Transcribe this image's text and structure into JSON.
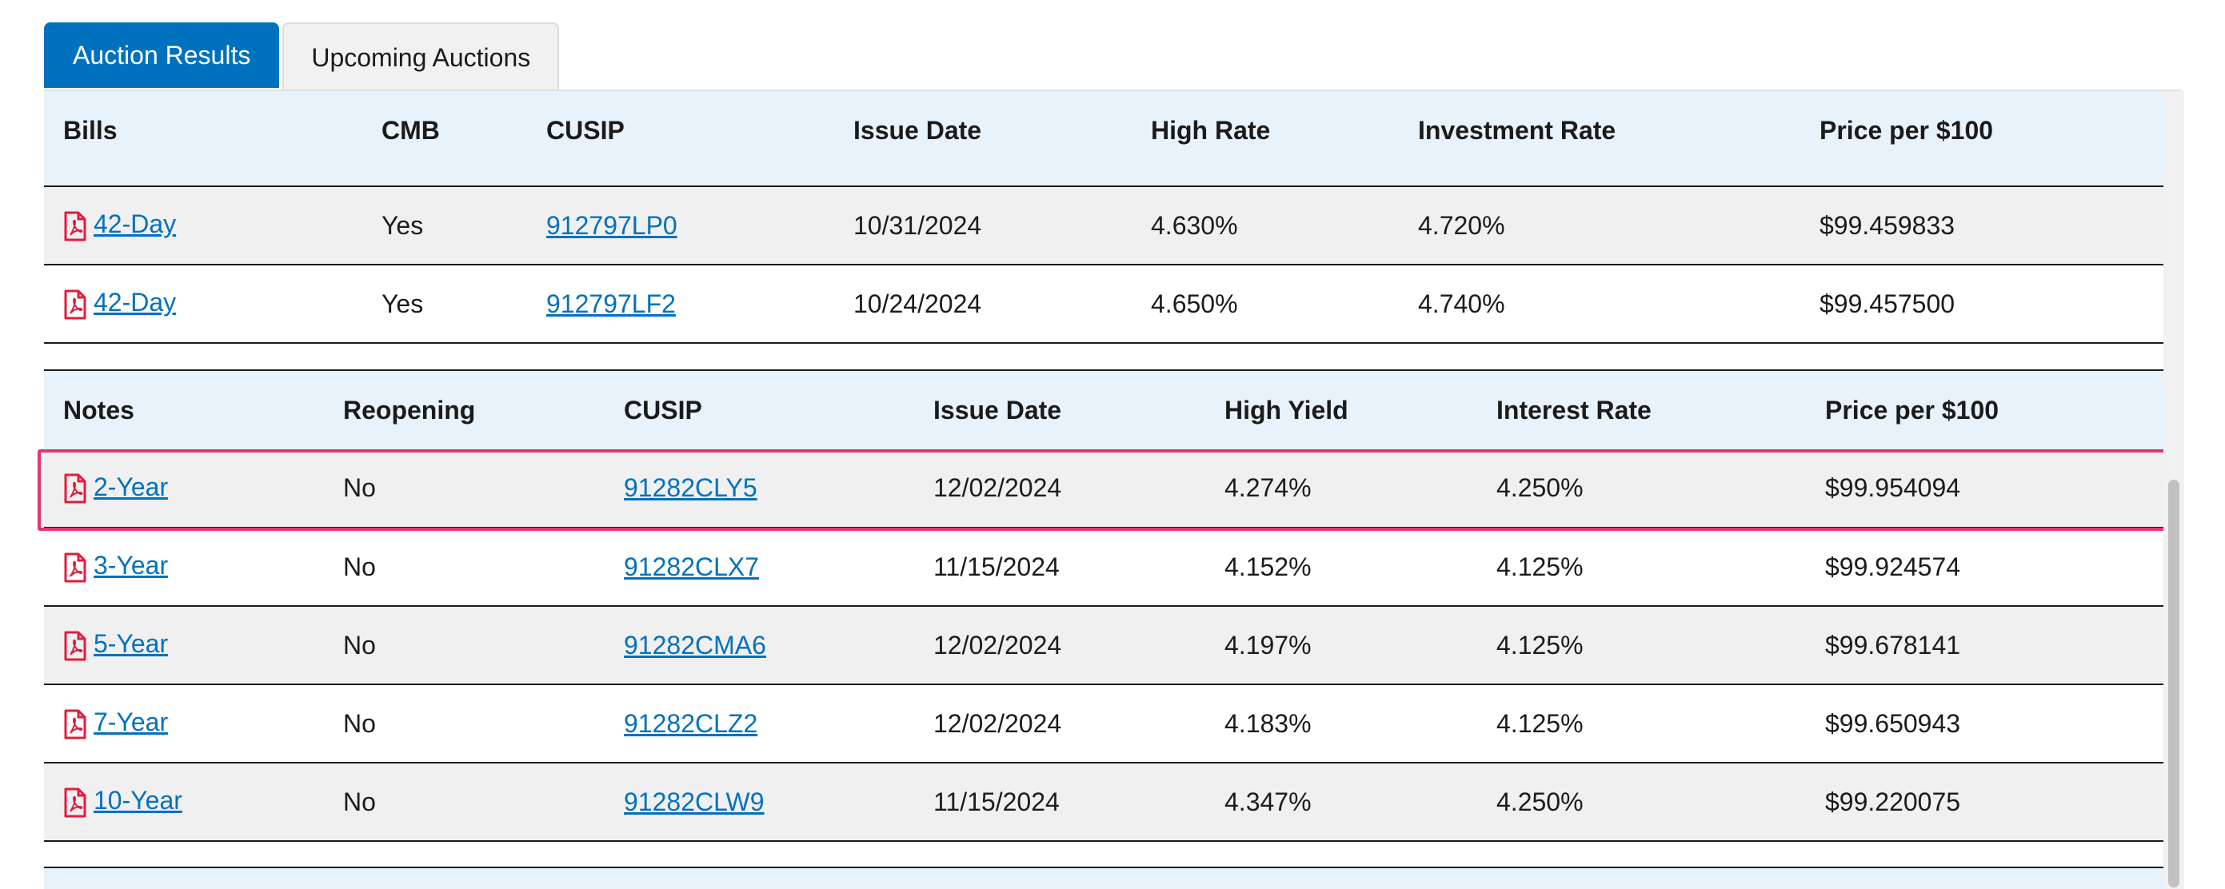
{
  "tabs": [
    {
      "label": "Auction Results",
      "active": true
    },
    {
      "label": "Upcoming Auctions",
      "active": false
    }
  ],
  "colors": {
    "accent": "#0071bc",
    "header_bg": "#e7f2fa",
    "row_alt": "#f0f0f0",
    "highlight": "#e8336d",
    "pdf_icon": "#e31c3d"
  },
  "icons": {
    "pdf": "file-pdf-icon"
  },
  "bills": {
    "headers": [
      "Bills",
      "CMB",
      "CUSIP",
      "Issue Date",
      "High Rate",
      "Investment Rate",
      "Price per $100"
    ],
    "rows": [
      {
        "term": "42-Day",
        "flag": "Yes",
        "cusip": "912797LP0",
        "issue_date": "10/31/2024",
        "rate": "4.630%",
        "rate2": "4.720%",
        "price": "$99.459833"
      },
      {
        "term": "42-Day",
        "flag": "Yes",
        "cusip": "912797LF2",
        "issue_date": "10/24/2024",
        "rate": "4.650%",
        "rate2": "4.740%",
        "price": "$99.457500"
      }
    ]
  },
  "notes": {
    "headers": [
      "Notes",
      "Reopening",
      "CUSIP",
      "Issue Date",
      "High Yield",
      "Interest Rate",
      "Price per $100"
    ],
    "rows": [
      {
        "term": "2-Year",
        "flag": "No",
        "cusip": "91282CLY5",
        "issue_date": "12/02/2024",
        "rate": "4.274%",
        "rate2": "4.250%",
        "price": "$99.954094",
        "highlighted": true
      },
      {
        "term": "3-Year",
        "flag": "No",
        "cusip": "91282CLX7",
        "issue_date": "11/15/2024",
        "rate": "4.152%",
        "rate2": "4.125%",
        "price": "$99.924574"
      },
      {
        "term": "5-Year",
        "flag": "No",
        "cusip": "91282CMA6",
        "issue_date": "12/02/2024",
        "rate": "4.197%",
        "rate2": "4.125%",
        "price": "$99.678141"
      },
      {
        "term": "7-Year",
        "flag": "No",
        "cusip": "91282CLZ2",
        "issue_date": "12/02/2024",
        "rate": "4.183%",
        "rate2": "4.125%",
        "price": "$99.650943"
      },
      {
        "term": "10-Year",
        "flag": "No",
        "cusip": "91282CLW9",
        "issue_date": "11/15/2024",
        "rate": "4.347%",
        "rate2": "4.250%",
        "price": "$99.220075"
      }
    ]
  }
}
